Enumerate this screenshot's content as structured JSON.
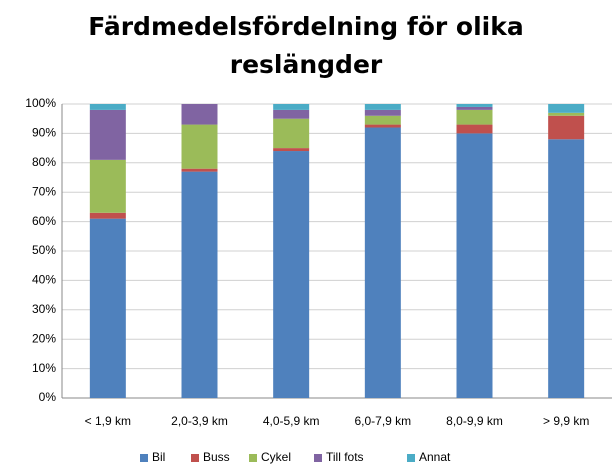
{
  "chart_data": {
    "type": "stacked_bar",
    "title": "Färdmedelsfördelning för olika reslängder",
    "categories": [
      "< 1,9 km",
      "2,0-3,9 km",
      "4,0-5,9 km",
      "6,0-7,9 km",
      "8,0-9,9 km",
      "> 9,9 km"
    ],
    "series": [
      {
        "name": "Bil",
        "color": "#4f81bd",
        "values": [
          61,
          77,
          84,
          92,
          90,
          88
        ]
      },
      {
        "name": "Buss",
        "color": "#c0504d",
        "values": [
          2,
          1,
          1,
          1,
          3,
          8
        ]
      },
      {
        "name": "Cykel",
        "color": "#9bbb59",
        "values": [
          18,
          15,
          10,
          3,
          5,
          1
        ]
      },
      {
        "name": "Till fots",
        "color": "#8064a2",
        "values": [
          17,
          7,
          3,
          2,
          1,
          0
        ]
      },
      {
        "name": "Annat",
        "color": "#4bacc6",
        "values": [
          2,
          0,
          2,
          2,
          1,
          3
        ]
      }
    ],
    "ylim": [
      0,
      100
    ],
    "yticks": [
      {
        "value": 0,
        "label": "0%"
      },
      {
        "value": 10,
        "label": "10%"
      },
      {
        "value": 20,
        "label": "20%"
      },
      {
        "value": 30,
        "label": "30%"
      },
      {
        "value": 40,
        "label": "40%"
      },
      {
        "value": 50,
        "label": "50%"
      },
      {
        "value": 60,
        "label": "60%"
      },
      {
        "value": 70,
        "label": "70%"
      },
      {
        "value": 80,
        "label": "80%"
      },
      {
        "value": 90,
        "label": "90%"
      },
      {
        "value": 100,
        "label": "100%"
      }
    ],
    "grid": true,
    "legend": "bottom"
  }
}
